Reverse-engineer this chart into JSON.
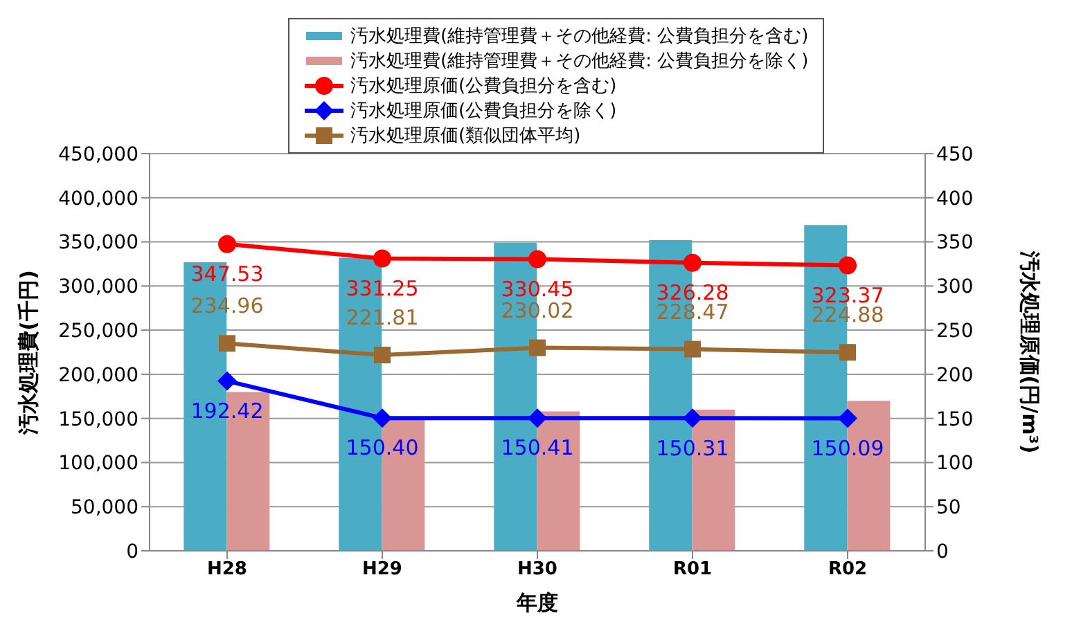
{
  "chart_data": {
    "type": "bar",
    "categories": [
      "H28",
      "H29",
      "H30",
      "R01",
      "R02"
    ],
    "xlabel": "年度",
    "ylabel": "汚水処理費(千円)",
    "y2label": "汚水処理原価(円/m³)",
    "ylim": [
      0,
      450000
    ],
    "yticks": [
      {
        "value": 0,
        "label": "0"
      },
      {
        "value": 50000,
        "label": "50,000"
      },
      {
        "value": 100000,
        "label": "100,000"
      },
      {
        "value": 150000,
        "label": "150,000"
      },
      {
        "value": 200000,
        "label": "200,000"
      },
      {
        "value": 250000,
        "label": "250,000"
      },
      {
        "value": 300000,
        "label": "300,000"
      },
      {
        "value": 350000,
        "label": "350,000"
      },
      {
        "value": 400000,
        "label": "400,000"
      },
      {
        "value": 450000,
        "label": "450,000"
      }
    ],
    "y2lim": [
      0,
      450
    ],
    "y2ticks": [
      0,
      50,
      100,
      150,
      200,
      250,
      300,
      350,
      400,
      450
    ],
    "grid": "y",
    "legend": "top",
    "series": [
      {
        "name": "汚水処理費(維持管理費＋その他経費: 公費負担分を含む)",
        "color": "#4bacc6",
        "values": [
          327000,
          332000,
          349000,
          352000,
          369000
        ]
      },
      {
        "name": "汚水処理費(維持管理費＋その他経費: 公費負担分を除く)",
        "color": "#d99694",
        "values": [
          180000,
          149000,
          158000,
          160000,
          170000
        ]
      },
      {
        "name": "汚水処理原価(公費負担分を含む)",
        "type": "line",
        "axis": "y2",
        "color": "#ff0000",
        "marker": "circle",
        "values": [
          347.53,
          331.25,
          330.45,
          326.28,
          323.37
        ],
        "value_labels": [
          "347.53",
          "331.25",
          "330.45",
          "326.28",
          "323.37"
        ]
      },
      {
        "name": "汚水処理原価(公費負担分を除く)",
        "type": "line",
        "axis": "y2",
        "color": "#0000ff",
        "marker": "diamond",
        "values": [
          192.42,
          150.4,
          150.41,
          150.31,
          150.09
        ],
        "value_labels": [
          "192.42",
          "150.40",
          "150.41",
          "150.31",
          "150.09"
        ]
      },
      {
        "name": "汚水処理原価(類似団体平均)",
        "type": "line",
        "axis": "y2",
        "color": "#9c6a31",
        "marker": "square",
        "values": [
          234.96,
          221.81,
          230.02,
          228.47,
          224.88
        ],
        "value_labels": [
          "234.96",
          "221.81",
          "230.02",
          "228.47",
          "224.88"
        ]
      }
    ]
  }
}
